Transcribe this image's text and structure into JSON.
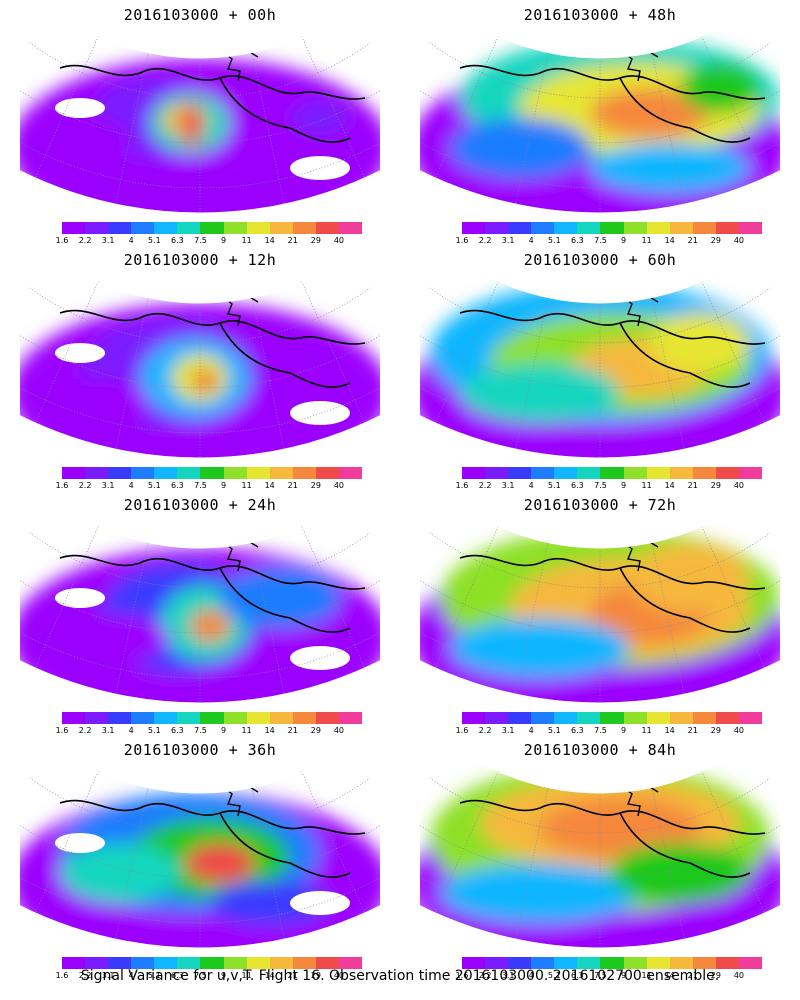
{
  "panels": [
    {
      "title": "2016103000 + 00h",
      "lead_hours": 0
    },
    {
      "title": "2016103000 + 48h",
      "lead_hours": 48
    },
    {
      "title": "2016103000 + 12h",
      "lead_hours": 12
    },
    {
      "title": "2016103000 + 60h",
      "lead_hours": 60
    },
    {
      "title": "2016103000 + 24h",
      "lead_hours": 24
    },
    {
      "title": "2016103000 + 72h",
      "lead_hours": 72
    },
    {
      "title": "2016103000 + 36h",
      "lead_hours": 36
    },
    {
      "title": "2016103000 + 84h",
      "lead_hours": 84
    }
  ],
  "colorbar": {
    "labels": [
      "1.6",
      "2.2",
      "3.1",
      "4",
      "5.1",
      "6.3",
      "7.5",
      "9",
      "11",
      "14",
      "21",
      "29",
      "40"
    ],
    "colors": [
      "#9b00ff",
      "#7a1cff",
      "#3a3aff",
      "#1f7cff",
      "#10b6ff",
      "#14d6c0",
      "#1ec81e",
      "#8ee028",
      "#e6e632",
      "#f5b83c",
      "#f5883c",
      "#f04a4a",
      "#f03c9a"
    ]
  },
  "caption": "Signal Variance for u,v,T. Flight 16. Observation time 2016103000. 2016102700 ensemble."
}
